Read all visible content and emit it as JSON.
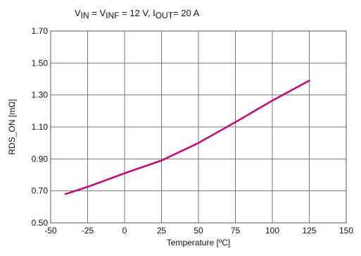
{
  "chart_data": {
    "type": "line",
    "title_parts": [
      {
        "text": "V",
        "sub": false
      },
      {
        "text": "IN",
        "sub": true
      },
      {
        "text": " = V",
        "sub": false
      },
      {
        "text": "INF",
        "sub": true
      },
      {
        "text": " = 12 V, I",
        "sub": false
      },
      {
        "text": "OUT",
        "sub": true
      },
      {
        "text": "= 20 A",
        "sub": false
      }
    ],
    "xlabel": "Temperature [ºC]",
    "ylabel": "RDS_ON [mΩ]",
    "xlim": [
      -50,
      150
    ],
    "ylim": [
      0.5,
      1.7
    ],
    "xticks": [
      -50,
      -25,
      0,
      25,
      50,
      75,
      100,
      125,
      150
    ],
    "xtick_labels": [
      "-50",
      "-25",
      "0",
      "25",
      "50",
      "75",
      "100",
      "125",
      "150"
    ],
    "yticks": [
      0.5,
      0.7,
      0.9,
      1.1,
      1.3,
      1.5,
      1.7
    ],
    "ytick_labels": [
      "0.50",
      "0.70",
      "0.90",
      "1.10",
      "1.30",
      "1.50",
      "1.70"
    ],
    "grid": true,
    "series": [
      {
        "color": "#cc0077",
        "x": [
          -40,
          -25,
          0,
          25,
          50,
          75,
          100,
          125
        ],
        "y": [
          0.68,
          0.725,
          0.81,
          0.89,
          1.0,
          1.13,
          1.265,
          1.39
        ]
      }
    ]
  }
}
